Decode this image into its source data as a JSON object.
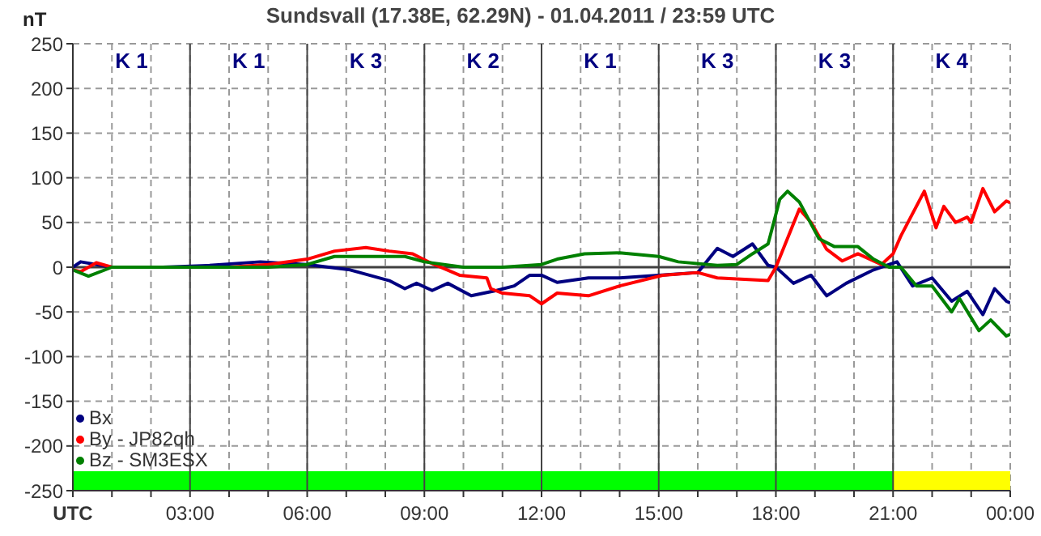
{
  "chart_data": {
    "type": "line",
    "title": "Sundsvall (17.38E, 62.29N) - 01.04.2011 / 23:59 UTC",
    "ylabel": "nT",
    "xlim": [
      0,
      24
    ],
    "xticks": [
      {
        "value": 0,
        "label": "UTC"
      },
      {
        "value": 1,
        "label": null
      },
      {
        "value": 2,
        "label": null
      },
      {
        "value": 3,
        "label": "03:00"
      },
      {
        "value": 4,
        "label": null
      },
      {
        "value": 5,
        "label": null
      },
      {
        "value": 6,
        "label": "06:00"
      },
      {
        "value": 7,
        "label": null
      },
      {
        "value": 8,
        "label": null
      },
      {
        "value": 9,
        "label": "09:00"
      },
      {
        "value": 10,
        "label": null
      },
      {
        "value": 11,
        "label": null
      },
      {
        "value": 12,
        "label": "12:00"
      },
      {
        "value": 13,
        "label": null
      },
      {
        "value": 14,
        "label": null
      },
      {
        "value": 15,
        "label": "15:00"
      },
      {
        "value": 16,
        "label": null
      },
      {
        "value": 17,
        "label": null
      },
      {
        "value": 18,
        "label": "18:00"
      },
      {
        "value": 19,
        "label": null
      },
      {
        "value": 20,
        "label": null
      },
      {
        "value": 21,
        "label": "21:00"
      },
      {
        "value": 22,
        "label": null
      },
      {
        "value": 23,
        "label": null
      },
      {
        "value": 24,
        "label": "00:00"
      }
    ],
    "ylim": [
      -250,
      250
    ],
    "yticks": [
      -250,
      -200,
      -150,
      -100,
      -50,
      0,
      50,
      100,
      150,
      200,
      250
    ],
    "grid": true,
    "legend": "bottom left",
    "marker": "none",
    "line_style": "solid",
    "ref_lines": [
      {
        "axis": "y",
        "value": 0,
        "color": "#404040"
      }
    ],
    "bands": [
      {
        "axis": "x",
        "from": 0,
        "to": 21,
        "color": "#00ff00"
      },
      {
        "axis": "x",
        "from": 21,
        "to": 24,
        "color": "#ffff00"
      }
    ],
    "annotations": [
      "K 1",
      "K 1",
      "K 3",
      "K 2",
      "K 1",
      "K 3",
      "K 3",
      "K 4"
    ],
    "series": [
      {
        "name": "Bx",
        "color": "#000080",
        "x": [
          0,
          0.2,
          1,
          2.3,
          3.5,
          4.8,
          6,
          7.1,
          8.1,
          8.5,
          8.8,
          9.2,
          9.6,
          10.2,
          10.85,
          11.3,
          11.7,
          12,
          12.4,
          13.2,
          14,
          15,
          16,
          16.5,
          16.9,
          17.4,
          17.8,
          18,
          18.45,
          18.9,
          19.3,
          19.8,
          20.5,
          20.9,
          21.1,
          21.5,
          22,
          22.5,
          22.9,
          23.3,
          23.6,
          23.9,
          24
        ],
        "values": [
          0,
          6,
          0,
          0,
          2,
          6,
          3,
          -3,
          -15,
          -24,
          -18,
          -26,
          -18,
          -32,
          -26,
          -21,
          -9,
          -9,
          -17,
          -12,
          -12,
          -9,
          -6,
          21,
          12,
          26,
          2,
          0,
          -18,
          -9,
          -32,
          -18,
          -3,
          3,
          6,
          -21,
          -12,
          -38,
          -27,
          -53,
          -24,
          -38,
          -40
        ]
      },
      {
        "name": "By - JP82qh",
        "color": "#ff0000",
        "x": [
          0,
          0.2,
          0.6,
          1,
          2,
          3,
          4,
          5,
          6,
          6.7,
          7.5,
          8.1,
          8.7,
          9.1,
          9.9,
          10.6,
          10.7,
          11,
          11.7,
          12,
          12.4,
          13.2,
          14,
          15.1,
          16,
          16.5,
          17.8,
          18,
          18.6,
          18.9,
          19.3,
          19.7,
          20.1,
          20.7,
          21,
          21.2,
          21.8,
          22.1,
          22.3,
          22.6,
          22.9,
          23,
          23.3,
          23.6,
          23.9,
          24
        ],
        "values": [
          -3,
          -5,
          5,
          0,
          0,
          0,
          0,
          3,
          9,
          18,
          22,
          18,
          15,
          6,
          -9,
          -12,
          -24,
          -29,
          -32,
          -41,
          -29,
          -32,
          -21,
          -9,
          -6,
          -12,
          -15,
          0,
          65,
          50,
          20,
          7,
          15,
          3,
          15,
          35,
          85,
          44,
          68,
          50,
          56,
          50,
          88,
          62,
          74,
          72
        ]
      },
      {
        "name": "Bz - SM3ESX",
        "color": "#008000",
        "x": [
          0,
          0.4,
          1,
          2,
          3,
          4,
          5,
          6,
          6.7,
          7.5,
          8.5,
          9,
          10,
          11,
          12,
          12.4,
          13.1,
          14,
          15,
          15.5,
          16.5,
          17,
          17.4,
          17.8,
          18.1,
          18.3,
          18.6,
          19.1,
          19.5,
          20.1,
          20.5,
          20.9,
          21.2,
          21.6,
          22,
          22.5,
          22.7,
          23.2,
          23.5,
          23.9,
          24
        ],
        "values": [
          -3,
          -10,
          0,
          0,
          0,
          0,
          0,
          3,
          12,
          12,
          12,
          6,
          0,
          0,
          3,
          9,
          15,
          16,
          12,
          6,
          2,
          3,
          15,
          26,
          76,
          85,
          73,
          32,
          23,
          23,
          9,
          0,
          0,
          -21,
          -21,
          -50,
          -35,
          -71,
          -59,
          -77,
          -75
        ]
      }
    ]
  }
}
